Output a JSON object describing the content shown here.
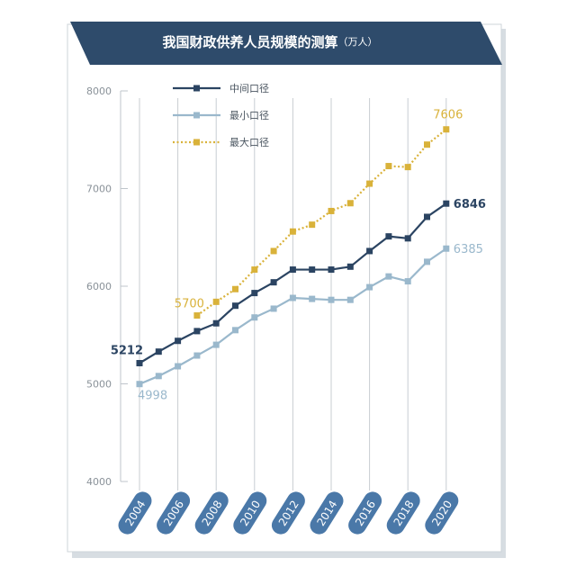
{
  "chart_data": {
    "type": "line",
    "title": "我国财政供养人员规模的测算",
    "unit": "（万人）",
    "ylim": [
      4000,
      8000
    ],
    "yticks": [
      "4000",
      "5000",
      "6000",
      "7000",
      "8000"
    ],
    "x": [
      2004,
      2005,
      2006,
      2007,
      2008,
      2009,
      2010,
      2011,
      2012,
      2013,
      2014,
      2015,
      2016,
      2017,
      2018,
      2019,
      2020
    ],
    "xtick_labels": [
      "2004",
      "2006",
      "2008",
      "2010",
      "2012",
      "2014",
      "2016",
      "2018",
      "2020"
    ],
    "grid": "vertical",
    "legend": "top-left",
    "series": [
      {
        "name": "中间口径",
        "color": "#2b4462",
        "style": "solid",
        "values": [
          5212,
          5330,
          5440,
          5540,
          5620,
          5800,
          5930,
          6040,
          6170,
          6170,
          6170,
          6200,
          6360,
          6510,
          6490,
          6710,
          6846
        ],
        "first_label": "5212",
        "last_label": "6846"
      },
      {
        "name": "最小口径",
        "color": "#9ab8cc",
        "style": "solid",
        "values": [
          4998,
          5080,
          5180,
          5290,
          5400,
          5550,
          5680,
          5770,
          5880,
          5870,
          5860,
          5860,
          5990,
          6100,
          6050,
          6250,
          6385
        ],
        "first_label": "4998",
        "last_label": "6385"
      },
      {
        "name": "最大口径",
        "color": "#d9b23a",
        "style": "dotted",
        "values": [
          null,
          null,
          null,
          5700,
          5840,
          5970,
          6170,
          6360,
          6560,
          6630,
          6770,
          6850,
          7050,
          7230,
          7220,
          7450,
          7606
        ],
        "first_label": "5700",
        "last_label": "7606"
      }
    ]
  }
}
